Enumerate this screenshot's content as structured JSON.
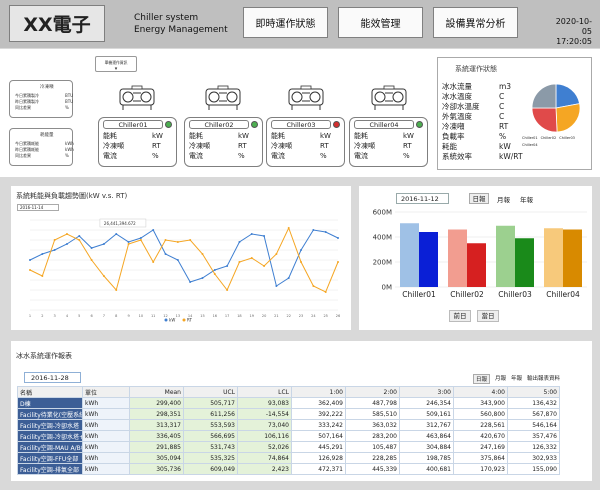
{
  "header": {
    "logo": "XX電子",
    "system_title_line1": "Chiller system",
    "system_title_line2": "Energy Management",
    "nav": [
      "即時運作狀態",
      "能效管理",
      "設備異常分析"
    ],
    "date": "2020-10-05",
    "time": "17:20:05"
  },
  "summary_cards": [
    {
      "title": "冷凍噸",
      "rows": [
        [
          "今日累積製冷",
          "BTU"
        ],
        [
          "昨日累積製冷",
          "BTU"
        ],
        [
          "同比差異",
          "%"
        ]
      ]
    },
    {
      "title": "耗能量",
      "rows": [
        [
          "今日累積耗能",
          "kWh"
        ],
        [
          "昨日累積耗能",
          "kWh"
        ],
        [
          "同比差異",
          "%"
        ]
      ]
    }
  ],
  "mode_dropdown": {
    "label": "單機運作資訊"
  },
  "chillers": [
    {
      "name": "Chiller01",
      "status_color": "#4caf50",
      "rows": [
        [
          "能耗",
          "kW"
        ],
        [
          "冷凍噸",
          "RT"
        ],
        [
          "電流",
          "%"
        ]
      ]
    },
    {
      "name": "Chiller02",
      "status_color": "#4caf50",
      "rows": [
        [
          "能耗",
          "kW"
        ],
        [
          "冷凍噸",
          "RT"
        ],
        [
          "電流",
          "%"
        ]
      ]
    },
    {
      "name": "Chiller03",
      "status_color": "#d32f2f",
      "rows": [
        [
          "能耗",
          "kW"
        ],
        [
          "冷凍噸",
          "RT"
        ],
        [
          "電流",
          "%"
        ]
      ]
    },
    {
      "name": "Chiller04",
      "status_color": "#4caf50",
      "rows": [
        [
          "能耗",
          "kW"
        ],
        [
          "冷凍噸",
          "RT"
        ],
        [
          "電流",
          "%"
        ]
      ]
    }
  ],
  "system_status": {
    "title": "系統運作狀態",
    "rows": [
      [
        "冰水流量",
        "m3"
      ],
      [
        "冰水溫度",
        "C"
      ],
      [
        "冷卻水溫度",
        "C"
      ],
      [
        "外氣溫度",
        "C"
      ],
      [
        "冷凍噸",
        "RT"
      ],
      [
        "負載率",
        "%"
      ],
      [
        "耗能",
        "kW"
      ],
      [
        "系統效率",
        "kW/RT"
      ]
    ],
    "pie_slices": [
      {
        "name": "Chiller01",
        "value": 22.1,
        "color": "#3f7fd1"
      },
      {
        "name": "Chiller02",
        "value": 27.2,
        "color": "#f5a623"
      },
      {
        "name": "Chiller03",
        "value": 25.7,
        "color": "#e04a4a"
      },
      {
        "name": "Chiller04",
        "value": 25.0,
        "color": "#8b9aa8"
      }
    ],
    "pie_legend": [
      "Chiller01",
      "Chiller02",
      "Chiller03",
      "Chiller04"
    ]
  },
  "trend_chart": {
    "title": "系統耗能與負載趨勢圖(kW v.s. RT)",
    "date_value": "2016-11-14",
    "tooltip": "26,441,394.672",
    "legend": [
      "kW",
      "RT"
    ],
    "chart_data": {
      "type": "line",
      "x": [
        1,
        2,
        3,
        4,
        5,
        6,
        7,
        8,
        9,
        10,
        11,
        12,
        13,
        14,
        15,
        16,
        17,
        18,
        19,
        20,
        21,
        22,
        23,
        24,
        25,
        26
      ],
      "series": [
        {
          "name": "kW",
          "color": "#3f7fd1",
          "values": [
            25,
            28,
            30,
            33,
            37,
            31,
            33,
            38,
            34,
            36,
            40,
            28,
            25,
            14,
            16,
            20,
            22,
            34,
            38,
            37,
            12,
            16,
            30,
            40,
            39,
            36
          ]
        },
        {
          "name": "RT",
          "color": "#f5a623",
          "values": [
            20,
            17,
            35,
            38,
            35,
            25,
            17,
            10,
            33,
            35,
            24,
            35,
            34,
            35,
            28,
            18,
            10,
            24,
            26,
            22,
            28,
            41,
            24,
            12,
            9,
            24
          ]
        }
      ]
    }
  },
  "bar_panel": {
    "date_value": "2016-11-12",
    "tabs": [
      "日報",
      "月報",
      "年報"
    ],
    "buttons": [
      "前日",
      "當日"
    ],
    "chart_data": {
      "type": "bar",
      "categories": [
        "Chiller01",
        "Chiller02",
        "Chiller03",
        "Chiller04"
      ],
      "ylim": [
        0,
        600
      ],
      "y_ticks": [
        "0M",
        "200M",
        "400M",
        "600M"
      ],
      "series": [
        {
          "name": "",
          "values": [
            510,
            460,
            490,
            470
          ]
        },
        {
          "name": "",
          "values": [
            440,
            350,
            390,
            460
          ]
        }
      ],
      "colors": [
        [
          "#9fc1e6",
          "#0a1fd6"
        ],
        [
          "#f29d90",
          "#d62020"
        ],
        [
          "#9cd08f",
          "#1a8a1a"
        ],
        [
          "#f7c97b",
          "#d88a00"
        ]
      ]
    }
  },
  "report": {
    "title": "冰水系統運作報表",
    "date_value": "2016-11-28",
    "tabs": [
      "日報",
      "月報",
      "年報",
      "輸出報表資料"
    ],
    "columns": [
      "名稱",
      "單位",
      "Mean",
      "UCL",
      "LCL",
      "1:00",
      "2:00",
      "3:00",
      "4:00",
      "5:00"
    ],
    "rows": [
      [
        "D棟",
        "kWh",
        "299,400",
        "505,717",
        "93,083",
        "362,409",
        "487,798",
        "246,354",
        "343,900",
        "136,432"
      ],
      [
        "Facility待業化(空壓系統-N2)",
        "kWh",
        "298,351",
        "611,256",
        "-14,554",
        "392,222",
        "585,510",
        "509,161",
        "560,800",
        "567,870"
      ],
      [
        "Facility空調-冷卻水塔",
        "kWh",
        "313,317",
        "553,593",
        "73,040",
        "333,242",
        "363,032",
        "312,767",
        "228,561",
        "546,164"
      ],
      [
        "Facility空調-冷卻水塔+冰水溫",
        "kWh",
        "336,405",
        "566,695",
        "106,116",
        "507,164",
        "283,200",
        "463,864",
        "420,670",
        "357,476"
      ],
      [
        "Facility空調-MAU A/B棟",
        "kWh",
        "291,885",
        "531,743",
        "52,026",
        "445,291",
        "105,487",
        "304,884",
        "247,169",
        "126,332"
      ],
      [
        "Facility空調-FFU全部",
        "kWh",
        "305,094",
        "535,325",
        "74,864",
        "126,928",
        "228,285",
        "198,785",
        "375,864",
        "302,933"
      ],
      [
        "Facility空調-排氣全部",
        "kWh",
        "305,736",
        "609,049",
        "2,423",
        "472,371",
        "445,339",
        "400,681",
        "170,923",
        "155,090"
      ]
    ]
  }
}
